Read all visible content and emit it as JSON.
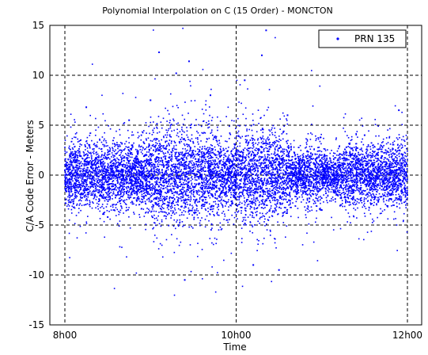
{
  "chart_data": {
    "type": "scatter",
    "title": "Polynomial Interpolation on C (15 Order) - MONCTON",
    "xlabel": "Time",
    "ylabel": "C/A Code Error - Meters",
    "x_ticks": [
      "8h00",
      "10h00",
      "12h00"
    ],
    "y_ticks": [
      "15",
      "10",
      "5",
      "0",
      "-5",
      "-10",
      "-15"
    ],
    "xlim": [
      8,
      12
    ],
    "ylim": [
      -15,
      15
    ],
    "grid": true,
    "grid_style": "dashed",
    "legend_position": "top-right",
    "series": [
      {
        "name": "PRN 135",
        "color": "#0000ff",
        "marker": "dot",
        "description_points": [
          {
            "x": 8.0,
            "y": 0.5
          },
          {
            "x": 8.25,
            "y": 6.8
          },
          {
            "x": 8.5,
            "y": -4.2
          },
          {
            "x": 8.75,
            "y": 5.5
          },
          {
            "x": 9.0,
            "y": 7.5
          },
          {
            "x": 9.1,
            "y": 12.3
          },
          {
            "x": 9.3,
            "y": 10.2
          },
          {
            "x": 9.4,
            "y": -10.5
          },
          {
            "x": 9.45,
            "y": 11.4
          },
          {
            "x": 9.7,
            "y": 8.0
          },
          {
            "x": 10.1,
            "y": 9.5
          },
          {
            "x": 10.2,
            "y": -9.0
          },
          {
            "x": 10.3,
            "y": 12.0
          },
          {
            "x": 10.35,
            "y": 14.5
          },
          {
            "x": 10.5,
            "y": -9.5
          },
          {
            "x": 10.6,
            "y": 6.0
          },
          {
            "x": 11.0,
            "y": -3.5
          },
          {
            "x": 11.5,
            "y": 4.0
          },
          {
            "x": 11.9,
            "y": 6.5
          },
          {
            "x": 12.0,
            "y": -2.0
          }
        ]
      }
    ]
  }
}
